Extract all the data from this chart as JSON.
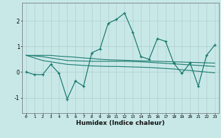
{
  "xlabel": "Humidex (Indice chaleur)",
  "xlim": [
    -0.5,
    23.5
  ],
  "ylim": [
    -1.6,
    2.7
  ],
  "bg_color": "#c8e8e8",
  "line_color": "#1a7a6e",
  "grid_color": "#b0cccc",
  "series": [
    [
      0.0,
      -0.1,
      -0.1,
      0.3,
      -0.05,
      -1.05,
      -0.35,
      -0.55,
      0.75,
      0.9,
      1.9,
      2.05,
      2.3,
      1.55,
      0.6,
      0.5,
      1.3,
      1.2,
      0.35,
      -0.05,
      0.35,
      -0.55,
      0.65,
      1.05
    ],
    [
      0.65,
      0.65,
      0.65,
      0.65,
      0.62,
      0.6,
      0.58,
      0.55,
      0.53,
      0.5,
      0.48,
      0.47,
      0.46,
      0.45,
      0.44,
      0.43,
      0.42,
      0.41,
      0.4,
      0.39,
      0.38,
      0.37,
      0.36,
      0.35
    ],
    [
      0.65,
      0.63,
      0.6,
      0.55,
      0.5,
      0.45,
      0.44,
      0.43,
      0.42,
      0.42,
      0.42,
      0.42,
      0.42,
      0.41,
      0.4,
      0.38,
      0.36,
      0.34,
      0.32,
      0.3,
      0.28,
      0.26,
      0.24,
      0.22
    ],
    [
      0.65,
      0.55,
      0.45,
      0.4,
      0.35,
      0.3,
      0.28,
      0.26,
      0.24,
      0.23,
      0.22,
      0.22,
      0.21,
      0.2,
      0.19,
      0.18,
      0.16,
      0.14,
      0.12,
      0.09,
      0.06,
      0.03,
      0.0,
      -0.03
    ]
  ]
}
